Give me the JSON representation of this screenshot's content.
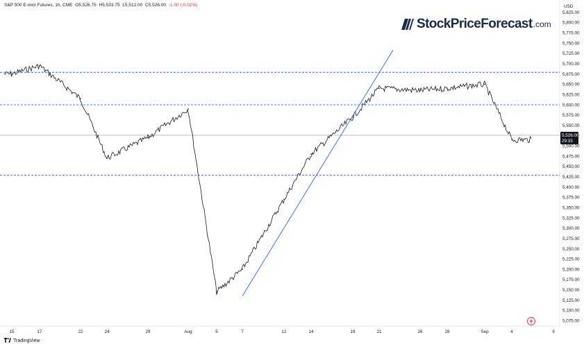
{
  "header": {
    "symbol": "S&P 500 E-mini Futures, 1h, CME",
    "open": "O5,526.75",
    "high": "H5,533.75",
    "low": "L5,512.00",
    "close": "C5,526.00",
    "change": "-1.00 (-0.02%)"
  },
  "logo": {
    "name": "StockPriceForecast",
    "tld": ".com"
  },
  "footer": {
    "brand": "TradingView"
  },
  "price_axis": {
    "currency": "USD",
    "last_price": "5,526.00",
    "countdown": "29:33",
    "tick_labels": [
      "5,825.00",
      "5,800.00",
      "5,775.00",
      "5,750.00",
      "5,725.00",
      "5,700.00",
      "5,675.00",
      "5,650.00",
      "5,625.00",
      "5,600.00",
      "5,575.00",
      "5,550.00",
      "5,525.00",
      "5,500.00",
      "5,475.00",
      "5,450.00",
      "5,425.00",
      "5,400.00",
      "5,375.00",
      "5,350.00",
      "5,325.00",
      "5,300.00",
      "5,275.00",
      "5,250.00",
      "5,225.00",
      "5,200.00",
      "5,175.00",
      "5,150.00",
      "5,125.00",
      "5,100.00",
      "5,075.00"
    ]
  },
  "time_axis": {
    "tick_labels": [
      "15",
      "17",
      "22",
      "24",
      "29",
      "Aug",
      "5",
      "7",
      "12",
      "14",
      "19",
      "21",
      "26",
      "28",
      "Sep",
      "4",
      "9"
    ]
  },
  "colors": {
    "price_line": "#131722",
    "level_lines": "#2962ff",
    "trendline": "#2962ff",
    "last_price_line": "#9598a1",
    "last_price_tag": "#131722",
    "lightning_icon": "#e91e63"
  },
  "chart_data": {
    "type": "line",
    "title": "S&P 500 E-mini Futures, 1h, CME",
    "x": [
      "15",
      "17",
      "22",
      "24",
      "29",
      "Aug",
      "5",
      "7",
      "12",
      "14",
      "19",
      "21",
      "26",
      "28",
      "Sep",
      "4"
    ],
    "series": [
      {
        "values": [
          5675,
          5695,
          5615,
          5470,
          5520,
          5590,
          5145,
          5200,
          5370,
          5480,
          5570,
          5640,
          5635,
          5640,
          5650,
          5515
        ]
      }
    ],
    "y_range": [
      5062,
      5838
    ],
    "horizontal_levels": [
      5679,
      5600,
      5429
    ],
    "trendline": {
      "start": [
        "7",
        5135
      ],
      "end": [
        "21",
        5733
      ]
    },
    "last_price": 5526,
    "grid": false
  }
}
